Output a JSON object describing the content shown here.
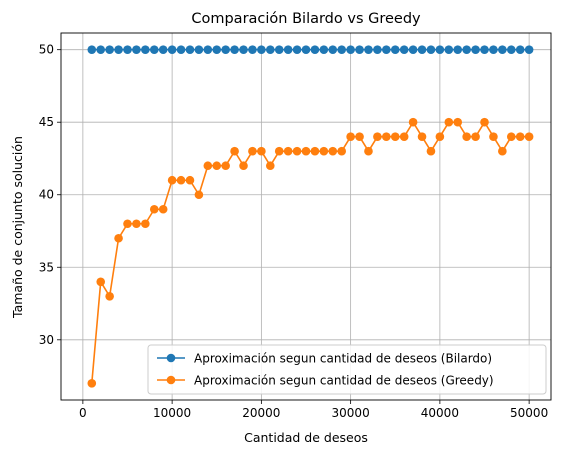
{
  "chart_data": {
    "type": "line",
    "title": "Comparación Bilardo vs Greedy",
    "xlabel": "Cantidad de deseos",
    "ylabel": "Tamaño de conjunto solución",
    "xlim": [
      -2450,
      52450
    ],
    "ylim": [
      25.85,
      51.15
    ],
    "xticks": [
      0,
      10000,
      20000,
      30000,
      40000,
      50000
    ],
    "xtick_labels": [
      "0",
      "10000",
      "20000",
      "30000",
      "40000",
      "50000"
    ],
    "yticks": [
      30,
      35,
      40,
      45,
      50
    ],
    "ytick_labels": [
      "30",
      "35",
      "40",
      "45",
      "50"
    ],
    "grid": true,
    "legend_position": "lower-right",
    "x": [
      1000,
      2000,
      3000,
      4000,
      5000,
      6000,
      7000,
      8000,
      9000,
      10000,
      11000,
      12000,
      13000,
      14000,
      15000,
      16000,
      17000,
      18000,
      19000,
      20000,
      21000,
      22000,
      23000,
      24000,
      25000,
      26000,
      27000,
      28000,
      29000,
      30000,
      31000,
      32000,
      33000,
      34000,
      35000,
      36000,
      37000,
      38000,
      39000,
      40000,
      41000,
      42000,
      43000,
      44000,
      45000,
      46000,
      47000,
      48000,
      49000,
      50000
    ],
    "series": [
      {
        "name": "Aproximación segun cantidad de deseos (Bilardo)",
        "color": "#1f77b4",
        "values": [
          50,
          50,
          50,
          50,
          50,
          50,
          50,
          50,
          50,
          50,
          50,
          50,
          50,
          50,
          50,
          50,
          50,
          50,
          50,
          50,
          50,
          50,
          50,
          50,
          50,
          50,
          50,
          50,
          50,
          50,
          50,
          50,
          50,
          50,
          50,
          50,
          50,
          50,
          50,
          50,
          50,
          50,
          50,
          50,
          50,
          50,
          50,
          50,
          50,
          50
        ]
      },
      {
        "name": "Aproximación segun cantidad de deseos (Greedy)",
        "color": "#ff7f0e",
        "values": [
          27,
          34,
          33,
          37,
          38,
          38,
          38,
          39,
          39,
          41,
          41,
          41,
          40,
          42,
          42,
          42,
          43,
          42,
          43,
          43,
          42,
          43,
          43,
          43,
          43,
          43,
          43,
          43,
          43,
          44,
          44,
          43,
          44,
          44,
          44,
          44,
          45,
          44,
          43,
          44,
          45,
          45,
          44,
          44,
          45,
          44,
          43,
          44,
          44,
          44
        ]
      }
    ]
  }
}
